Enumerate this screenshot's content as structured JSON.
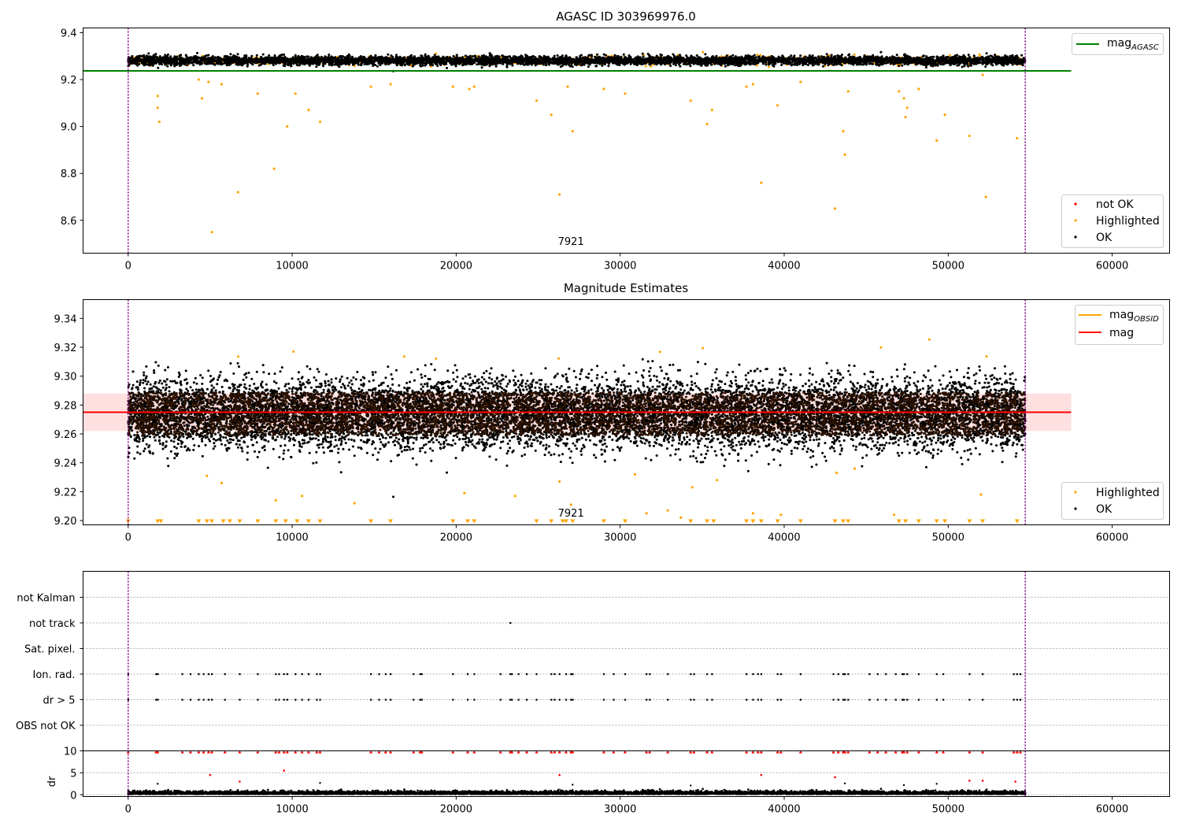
{
  "chart_data": [
    {
      "type": "scatter",
      "title": "AGASC ID 303969976.0",
      "xlim": [
        -2750,
        63500
      ],
      "ylim": [
        8.46,
        9.42
      ],
      "xticks": [
        0,
        10000,
        20000,
        30000,
        40000,
        50000,
        60000
      ],
      "yticks": [
        8.6,
        8.8,
        9.0,
        9.2,
        9.4
      ],
      "obsid_label": "7921",
      "obsid_label_x": 27000,
      "vlines_x": [
        0,
        54700
      ],
      "data_x_range": [
        0,
        54700
      ],
      "band": {
        "center": 9.281,
        "halfwidth": 0.017
      },
      "hline": {
        "name": "mag_AGASC",
        "y": 9.237,
        "x_range": [
          -2750,
          57500
        ],
        "color": "#008000"
      },
      "legend_lines": [
        {
          "name": "mag",
          "sub": "AGASC",
          "color": "#008000"
        }
      ],
      "legend_markers": [
        {
          "name": "not OK",
          "color": "#ff0000"
        },
        {
          "name": "Highlighted",
          "color": "#ffa500"
        },
        {
          "name": "OK",
          "color": "#000000"
        }
      ],
      "outliers": [
        {
          "x": 1800,
          "y": 9.13
        },
        {
          "x": 1800,
          "y": 9.08
        },
        {
          "x": 1900,
          "y": 9.02
        },
        {
          "x": 4300,
          "y": 9.2
        },
        {
          "x": 4500,
          "y": 9.12
        },
        {
          "x": 4900,
          "y": 9.19
        },
        {
          "x": 5100,
          "y": 8.55
        },
        {
          "x": 5700,
          "y": 9.18
        },
        {
          "x": 6700,
          "y": 8.72
        },
        {
          "x": 7900,
          "y": 9.14
        },
        {
          "x": 8900,
          "y": 8.82
        },
        {
          "x": 9700,
          "y": 9.0
        },
        {
          "x": 10200,
          "y": 9.14
        },
        {
          "x": 11000,
          "y": 9.07
        },
        {
          "x": 11700,
          "y": 9.02
        },
        {
          "x": 14800,
          "y": 9.17
        },
        {
          "x": 16000,
          "y": 9.18
        },
        {
          "x": 19800,
          "y": 9.17
        },
        {
          "x": 20800,
          "y": 9.16
        },
        {
          "x": 21100,
          "y": 9.17
        },
        {
          "x": 24900,
          "y": 9.11
        },
        {
          "x": 25800,
          "y": 9.05
        },
        {
          "x": 26300,
          "y": 8.71
        },
        {
          "x": 26800,
          "y": 9.17
        },
        {
          "x": 27100,
          "y": 8.98
        },
        {
          "x": 29000,
          "y": 9.16
        },
        {
          "x": 30300,
          "y": 9.14
        },
        {
          "x": 34300,
          "y": 9.11
        },
        {
          "x": 35300,
          "y": 9.01
        },
        {
          "x": 35600,
          "y": 9.07
        },
        {
          "x": 37700,
          "y": 9.17
        },
        {
          "x": 38100,
          "y": 9.18
        },
        {
          "x": 38600,
          "y": 8.76
        },
        {
          "x": 39600,
          "y": 9.09
        },
        {
          "x": 41000,
          "y": 9.19
        },
        {
          "x": 43100,
          "y": 8.65
        },
        {
          "x": 43600,
          "y": 8.98
        },
        {
          "x": 43700,
          "y": 8.88
        },
        {
          "x": 43900,
          "y": 9.15
        },
        {
          "x": 47000,
          "y": 9.15
        },
        {
          "x": 47300,
          "y": 9.12
        },
        {
          "x": 47400,
          "y": 9.04
        },
        {
          "x": 47500,
          "y": 9.08
        },
        {
          "x": 48200,
          "y": 9.16
        },
        {
          "x": 49300,
          "y": 8.94
        },
        {
          "x": 49800,
          "y": 9.05
        },
        {
          "x": 51300,
          "y": 8.96
        },
        {
          "x": 52100,
          "y": 9.22
        },
        {
          "x": 52300,
          "y": 8.7
        },
        {
          "x": 54200,
          "y": 8.95
        }
      ],
      "outlier_color": "#ffa500"
    },
    {
      "type": "scatter",
      "title": "Magnitude Estimates",
      "xlim": [
        -2750,
        63500
      ],
      "ylim": [
        9.197,
        9.353
      ],
      "xticks": [
        0,
        10000,
        20000,
        30000,
        40000,
        50000,
        60000
      ],
      "yticks": [
        9.2,
        9.22,
        9.24,
        9.26,
        9.28,
        9.3,
        9.32,
        9.34
      ],
      "obsid_label": "7921",
      "obsid_label_x": 27000,
      "vlines_x": [
        0,
        54700
      ],
      "data_x_range": [
        0,
        54700
      ],
      "band": {
        "center": 9.274,
        "halfwidth": 0.016
      },
      "hline": {
        "name": "mag",
        "y": 9.275,
        "x_range": [
          -2750,
          57500
        ],
        "color": "#ff0000"
      },
      "shade": {
        "y0": 9.262,
        "y1": 9.288,
        "x_range": [
          -2750,
          57500
        ],
        "color": "#ffcccc"
      },
      "legend_lines": [
        {
          "name": "mag",
          "sub": "OBSID",
          "color": "#ffa500"
        },
        {
          "name": "mag",
          "sub": "",
          "color": "#ff0000"
        }
      ],
      "legend_markers": [
        {
          "name": "Highlighted",
          "color": "#ffa500"
        },
        {
          "name": "OK",
          "color": "#000000"
        }
      ],
      "outliers": [
        {
          "x": 9000,
          "y": 9.214
        },
        {
          "x": 10600,
          "y": 9.217
        },
        {
          "x": 13800,
          "y": 9.212
        },
        {
          "x": 20500,
          "y": 9.219
        },
        {
          "x": 23600,
          "y": 9.217
        },
        {
          "x": 26300,
          "y": 9.227
        },
        {
          "x": 27000,
          "y": 9.211
        },
        {
          "x": 31600,
          "y": 9.205
        },
        {
          "x": 32900,
          "y": 9.207
        },
        {
          "x": 33700,
          "y": 9.202
        },
        {
          "x": 34400,
          "y": 9.223
        },
        {
          "x": 35900,
          "y": 9.228
        },
        {
          "x": 38100,
          "y": 9.205
        },
        {
          "x": 39800,
          "y": 9.204
        },
        {
          "x": 43200,
          "y": 9.233
        },
        {
          "x": 44300,
          "y": 9.236
        },
        {
          "x": 46700,
          "y": 9.204
        },
        {
          "x": 52000,
          "y": 9.218
        },
        {
          "x": 4800,
          "y": 9.231
        },
        {
          "x": 5700,
          "y": 9.226
        },
        {
          "x": 30900,
          "y": 9.232
        }
      ],
      "outlier_color": "#ffa500",
      "floor_markers_x": [
        0,
        1800,
        2000,
        4300,
        4800,
        5100,
        5800,
        6200,
        6800,
        7900,
        9000,
        9600,
        10300,
        11000,
        11700,
        14800,
        16000,
        19800,
        20700,
        21100,
        24900,
        25800,
        26500,
        26700,
        27100,
        29000,
        30300,
        34300,
        35300,
        35700,
        37700,
        38100,
        38600,
        39600,
        41000,
        43100,
        43600,
        43900,
        47000,
        47400,
        48200,
        49300,
        49800,
        51300,
        52100,
        54200
      ],
      "floor_marker_color": "#ffa500"
    },
    {
      "type": "scatter",
      "xlim": [
        -2750,
        63500
      ],
      "categories": [
        "not Kalman",
        "not track",
        "Sat. pixel.",
        "Ion. rad.",
        "dr > 5",
        "OBS not OK"
      ],
      "vlines_x": [
        0,
        54700
      ],
      "flag_events": [
        {
          "category": "not track",
          "x": [
            23300
          ]
        },
        {
          "category": "Ion. rad.",
          "x": [
            0,
            1700,
            1800,
            3300,
            3800,
            4300,
            4600,
            4900,
            5100,
            5900,
            6800,
            7900,
            9000,
            9200,
            9500,
            9700,
            10200,
            10600,
            11000,
            11500,
            11700,
            14800,
            15300,
            15700,
            16000,
            17400,
            17800,
            17900,
            19800,
            20700,
            21100,
            22700,
            23300,
            23400,
            23800,
            24300,
            24900,
            25800,
            26000,
            26300,
            26700,
            27000,
            27100,
            29000,
            29600,
            30300,
            31600,
            31800,
            32900,
            34300,
            34500,
            35300,
            35600,
            37700,
            38100,
            38400,
            38600,
            39600,
            39800,
            41000,
            43000,
            43300,
            43600,
            43700,
            43900,
            45200,
            45700,
            46200,
            46800,
            47200,
            47300,
            47500,
            48200,
            49300,
            49700,
            51300,
            52100,
            54000,
            54200,
            54400
          ]
        },
        {
          "category": "dr > 5",
          "x": [
            0,
            1700,
            1800,
            3300,
            3800,
            4300,
            4600,
            4900,
            5100,
            5900,
            6800,
            7900,
            9000,
            9200,
            9500,
            9700,
            10200,
            10600,
            11000,
            11500,
            11700,
            14800,
            15300,
            15700,
            16000,
            17400,
            17800,
            17900,
            19800,
            20700,
            21100,
            22700,
            23300,
            23400,
            23800,
            24300,
            24900,
            25800,
            26000,
            26300,
            26700,
            27000,
            27100,
            29000,
            29600,
            30300,
            31600,
            31800,
            32900,
            34300,
            34500,
            35300,
            35600,
            37700,
            38100,
            38400,
            38600,
            39600,
            39800,
            41000,
            43000,
            43300,
            43600,
            43700,
            43900,
            45200,
            45700,
            46200,
            46800,
            47200,
            47300,
            47500,
            48200,
            49300,
            49700,
            51300,
            52100,
            54000,
            54200,
            54400
          ]
        }
      ]
    },
    {
      "type": "scatter",
      "ylabel": "dr",
      "xlim": [
        -2750,
        63500
      ],
      "ylim": [
        -0.4,
        10.0
      ],
      "xticks": [
        0,
        10000,
        20000,
        30000,
        40000,
        50000,
        60000
      ],
      "yticks": [
        0,
        5,
        10
      ],
      "vlines_x": [
        0,
        54700
      ],
      "data_x_range": [
        0,
        54700
      ],
      "baseline": {
        "center": 0.3,
        "halfwidth": 0.35
      },
      "red_points_top": [
        0,
        1700,
        1800,
        3300,
        3800,
        4300,
        4600,
        4900,
        5100,
        5900,
        6800,
        7900,
        9000,
        9200,
        9500,
        9700,
        10200,
        10600,
        11000,
        11500,
        11700,
        14800,
        15300,
        15700,
        16000,
        17400,
        17800,
        17900,
        19800,
        20700,
        21100,
        22700,
        23300,
        23400,
        23800,
        24300,
        24900,
        25800,
        26000,
        26300,
        26700,
        27000,
        27100,
        29000,
        29600,
        30300,
        31600,
        31800,
        32900,
        34300,
        34500,
        35300,
        35600,
        37700,
        38100,
        38400,
        38600,
        39600,
        39800,
        41000,
        43000,
        43300,
        43600,
        43700,
        43900,
        45200,
        45700,
        46200,
        46800,
        47200,
        47300,
        47500,
        48200,
        49300,
        49700,
        51300,
        52100,
        54000,
        54200,
        54400
      ],
      "red_points_mid": [
        {
          "x": 5000,
          "y": 4.5
        },
        {
          "x": 6800,
          "y": 3.0
        },
        {
          "x": 9500,
          "y": 5.5
        },
        {
          "x": 26300,
          "y": 4.5
        },
        {
          "x": 38600,
          "y": 4.5
        },
        {
          "x": 43100,
          "y": 4.0
        },
        {
          "x": 51300,
          "y": 3.2
        },
        {
          "x": 52100,
          "y": 3.2
        },
        {
          "x": 54100,
          "y": 3.0
        }
      ],
      "black_points_mid": [
        {
          "x": 1800,
          "y": 2.5
        },
        {
          "x": 11700,
          "y": 2.7
        },
        {
          "x": 27100,
          "y": 2.3
        },
        {
          "x": 34300,
          "y": 2.1
        },
        {
          "x": 43700,
          "y": 2.6
        },
        {
          "x": 47300,
          "y": 2.2
        },
        {
          "x": 49300,
          "y": 2.5
        }
      ]
    }
  ]
}
